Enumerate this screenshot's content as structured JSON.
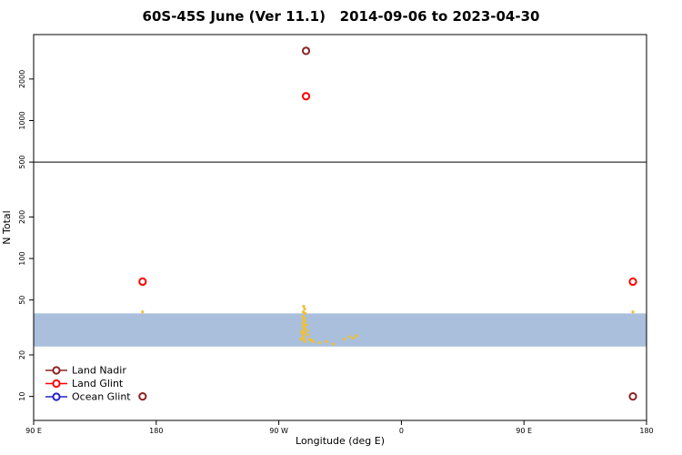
{
  "chart_data": {
    "type": "scatter",
    "title": "60S-45S June (Ver 11.1)   2014-09-06 to 2023-04-30",
    "xlabel": "Longitude (deg E)",
    "ylabel": "N Total",
    "x_scale": "linear",
    "y_scale": "log",
    "xlim": [
      90,
      540
    ],
    "ylim": [
      6.7,
      4200
    ],
    "grid": false,
    "x_ticks": [
      {
        "value": 90,
        "label": "90 E"
      },
      {
        "value": 180,
        "label": "180"
      },
      {
        "value": 270,
        "label": "90 W"
      },
      {
        "value": 360,
        "label": "0"
      },
      {
        "value": 450,
        "label": "90 E"
      },
      {
        "value": 540,
        "label": "180"
      }
    ],
    "y_ticks": [
      {
        "value": 10,
        "label": "10"
      },
      {
        "value": 20,
        "label": "20"
      },
      {
        "value": 50,
        "label": "50"
      },
      {
        "value": 100,
        "label": "100"
      },
      {
        "value": 200,
        "label": "200"
      },
      {
        "value": 500,
        "label": "500"
      },
      {
        "value": 1000,
        "label": "1000"
      },
      {
        "value": 2000,
        "label": "2000"
      }
    ],
    "reference_line_y": 500,
    "band": {
      "label": "ocean-glint-band",
      "x_from": 90,
      "x_to": 540,
      "y_from": 23,
      "y_to": 40,
      "fill": "#A9BFDC"
    },
    "series": [
      {
        "id": "land-nadir",
        "name": "Land Nadir",
        "color": "#8B2323",
        "points": [
          [
            290,
            3200
          ],
          [
            170,
            10
          ],
          [
            530,
            10
          ]
        ]
      },
      {
        "id": "land-glint",
        "name": "Land Glint",
        "color": "#FF0000",
        "points": [
          [
            290,
            1500
          ],
          [
            170,
            68
          ],
          [
            530,
            68
          ]
        ]
      },
      {
        "id": "ocean-glint",
        "name": "Ocean Glint",
        "color": "#2222CC",
        "points": []
      }
    ],
    "gold_points": {
      "id": "unlabeled-gold-scatter",
      "color": "#F0C030",
      "points": [
        [
          288.3,
          45
        ],
        [
          289,
          43
        ],
        [
          288,
          41
        ],
        [
          289.4,
          40
        ],
        [
          287.6,
          38
        ],
        [
          288.8,
          37
        ],
        [
          288.2,
          36
        ],
        [
          289.1,
          35
        ],
        [
          287.9,
          34
        ],
        [
          288.6,
          33
        ],
        [
          288.1,
          32
        ],
        [
          289.3,
          31
        ],
        [
          287.5,
          30
        ],
        [
          288.9,
          29
        ],
        [
          288.3,
          28
        ],
        [
          287.8,
          27
        ],
        [
          288.5,
          26
        ],
        [
          289,
          25
        ],
        [
          290.2,
          33
        ],
        [
          290.8,
          30
        ],
        [
          291.5,
          28
        ],
        [
          286.8,
          29
        ],
        [
          286.2,
          26
        ],
        [
          292.5,
          26
        ],
        [
          294,
          25.5
        ],
        [
          295.5,
          25
        ],
        [
          300,
          24.5
        ],
        [
          305,
          25
        ],
        [
          310,
          24
        ],
        [
          318,
          26
        ],
        [
          322,
          27
        ],
        [
          325,
          26.5
        ],
        [
          327,
          27.5
        ],
        [
          170,
          41
        ],
        [
          530,
          41
        ]
      ]
    },
    "legend_position": "bottom-left"
  }
}
